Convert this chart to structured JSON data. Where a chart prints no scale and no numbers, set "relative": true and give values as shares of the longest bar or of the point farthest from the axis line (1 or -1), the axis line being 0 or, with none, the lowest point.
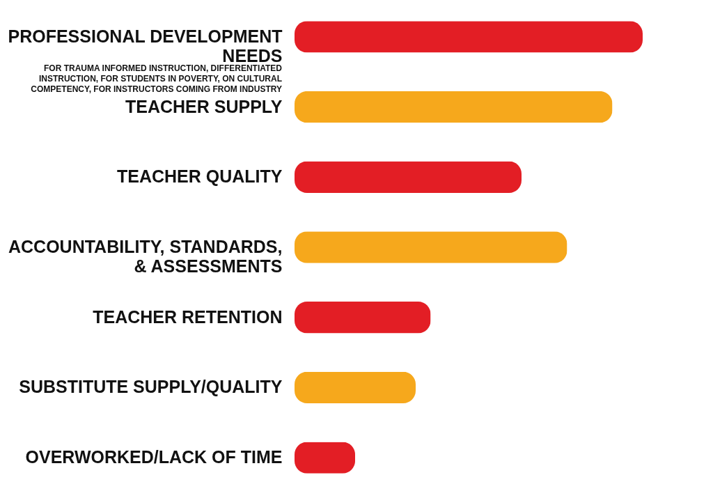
{
  "chart_data": {
    "type": "bar",
    "orientation": "horizontal",
    "relative": true,
    "categories": [
      "PROFESSIONAL DEVELOPMENT NEEDS",
      "TEACHER SUPPLY",
      "TEACHER QUALITY",
      "ACCOUNTABILITY, STANDARDS, & ASSESSMENTS",
      "TEACHER RETENTION",
      "SUBSTITUTE SUPPLY/QUALITY",
      "OVERWORKED/LACK OF TIME"
    ],
    "values": [
      1,
      0.913,
      0.652,
      0.783,
      0.391,
      0.348,
      0.174
    ],
    "colors": [
      "#e31e25",
      "#f6a81c",
      "#e31e25",
      "#f6a81c",
      "#e31e25",
      "#f6a81c",
      "#e31e25"
    ],
    "annotations": [
      "FOR TRAUMA INFORMED INSTRUCTION, DIFFERENTIATED INSTRUCTION, FOR STUDENTS IN POVERTY, ON CULTURAL COMPETENCY, FOR INSTRUCTORS COMING FROM INDUSTRY"
    ]
  }
}
